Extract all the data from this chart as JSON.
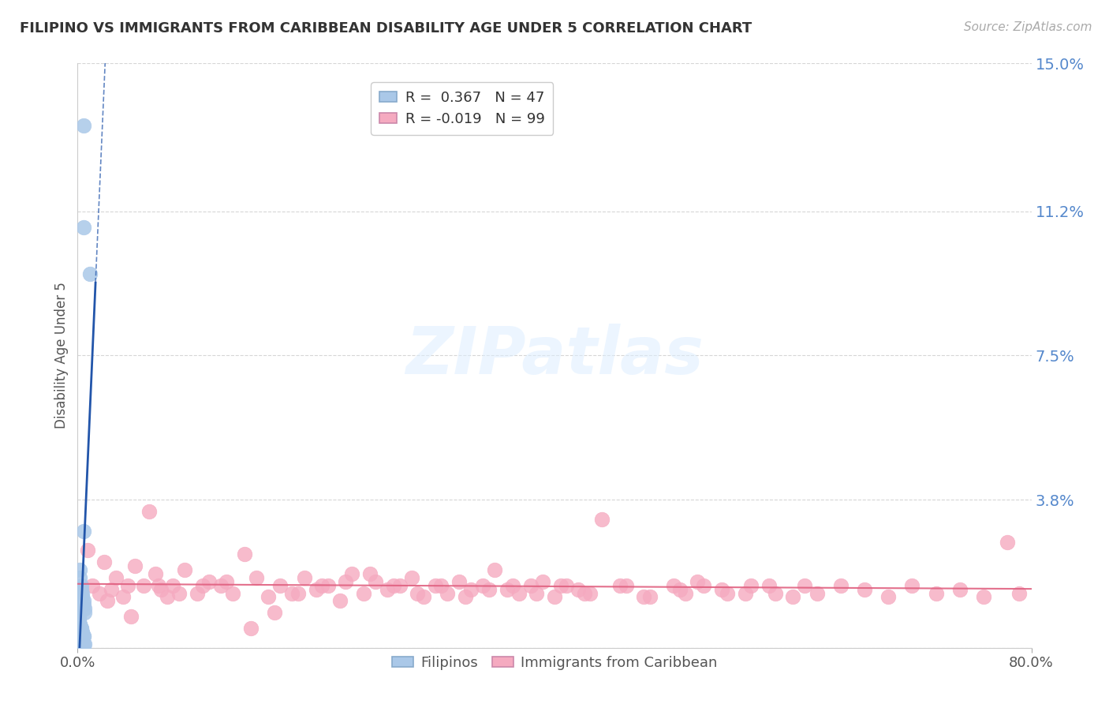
{
  "title": "FILIPINO VS IMMIGRANTS FROM CARIBBEAN DISABILITY AGE UNDER 5 CORRELATION CHART",
  "source": "Source: ZipAtlas.com",
  "ylabel": "Disability Age Under 5",
  "watermark": "ZIPatlas",
  "ylim": [
    0,
    0.15
  ],
  "xlim": [
    0,
    0.8
  ],
  "yticks": [
    0.0,
    0.038,
    0.075,
    0.112,
    0.15
  ],
  "ytick_labels": [
    "",
    "3.8%",
    "7.5%",
    "11.2%",
    "15.0%"
  ],
  "blue_color": "#aac8e8",
  "pink_color": "#f5aac0",
  "blue_line_color": "#2255aa",
  "pink_line_color": "#e06080",
  "grid_color": "#cccccc",
  "background_color": "#ffffff",
  "blue_scatter_x": [
    0.005,
    0.005,
    0.01,
    0.005,
    0.002,
    0.002,
    0.003,
    0.003,
    0.004,
    0.004,
    0.005,
    0.005,
    0.006,
    0.006,
    0.001,
    0.001,
    0.002,
    0.002,
    0.003,
    0.003,
    0.004,
    0.004,
    0.005,
    0.005,
    0.001,
    0.002,
    0.003,
    0.002,
    0.003,
    0.004,
    0.001,
    0.002,
    0.003,
    0.004,
    0.005,
    0.006,
    0.002,
    0.003,
    0.004,
    0.005,
    0.001,
    0.002,
    0.003,
    0.004,
    0.001,
    0.002,
    0.001
  ],
  "blue_scatter_y": [
    0.134,
    0.108,
    0.096,
    0.03,
    0.02,
    0.018,
    0.016,
    0.015,
    0.014,
    0.013,
    0.012,
    0.011,
    0.01,
    0.009,
    0.008,
    0.007,
    0.006,
    0.006,
    0.005,
    0.005,
    0.004,
    0.004,
    0.003,
    0.003,
    0.003,
    0.003,
    0.002,
    0.002,
    0.002,
    0.002,
    0.001,
    0.001,
    0.001,
    0.001,
    0.001,
    0.001,
    0.0,
    0.0,
    0.0,
    0.0,
    0.0,
    0.0,
    0.0,
    0.0,
    0.0,
    0.0,
    0.0
  ],
  "pink_scatter_x": [
    0.008,
    0.012,
    0.018,
    0.022,
    0.028,
    0.032,
    0.038,
    0.042,
    0.048,
    0.055,
    0.06,
    0.065,
    0.07,
    0.075,
    0.08,
    0.09,
    0.1,
    0.11,
    0.12,
    0.13,
    0.14,
    0.15,
    0.16,
    0.17,
    0.18,
    0.19,
    0.2,
    0.21,
    0.22,
    0.23,
    0.24,
    0.25,
    0.26,
    0.27,
    0.28,
    0.29,
    0.3,
    0.31,
    0.32,
    0.33,
    0.34,
    0.35,
    0.36,
    0.37,
    0.38,
    0.39,
    0.4,
    0.41,
    0.42,
    0.43,
    0.44,
    0.46,
    0.48,
    0.5,
    0.51,
    0.52,
    0.54,
    0.56,
    0.58,
    0.6,
    0.62,
    0.64,
    0.66,
    0.68,
    0.7,
    0.72,
    0.74,
    0.76,
    0.78,
    0.79,
    0.025,
    0.045,
    0.068,
    0.085,
    0.105,
    0.125,
    0.145,
    0.165,
    0.185,
    0.205,
    0.225,
    0.245,
    0.265,
    0.285,
    0.305,
    0.325,
    0.345,
    0.365,
    0.385,
    0.405,
    0.425,
    0.455,
    0.475,
    0.505,
    0.525,
    0.545,
    0.565,
    0.585,
    0.61
  ],
  "pink_scatter_y": [
    0.025,
    0.016,
    0.014,
    0.022,
    0.015,
    0.018,
    0.013,
    0.016,
    0.021,
    0.016,
    0.035,
    0.019,
    0.015,
    0.013,
    0.016,
    0.02,
    0.014,
    0.017,
    0.016,
    0.014,
    0.024,
    0.018,
    0.013,
    0.016,
    0.014,
    0.018,
    0.015,
    0.016,
    0.012,
    0.019,
    0.014,
    0.017,
    0.015,
    0.016,
    0.018,
    0.013,
    0.016,
    0.014,
    0.017,
    0.015,
    0.016,
    0.02,
    0.015,
    0.014,
    0.016,
    0.017,
    0.013,
    0.016,
    0.015,
    0.014,
    0.033,
    0.016,
    0.013,
    0.016,
    0.014,
    0.017,
    0.015,
    0.014,
    0.016,
    0.013,
    0.014,
    0.016,
    0.015,
    0.013,
    0.016,
    0.014,
    0.015,
    0.013,
    0.027,
    0.014,
    0.012,
    0.008,
    0.016,
    0.014,
    0.016,
    0.017,
    0.005,
    0.009,
    0.014,
    0.016,
    0.017,
    0.019,
    0.016,
    0.014,
    0.016,
    0.013,
    0.015,
    0.016,
    0.014,
    0.016,
    0.014,
    0.016,
    0.013,
    0.015,
    0.016,
    0.014,
    0.016,
    0.014,
    0.016
  ]
}
